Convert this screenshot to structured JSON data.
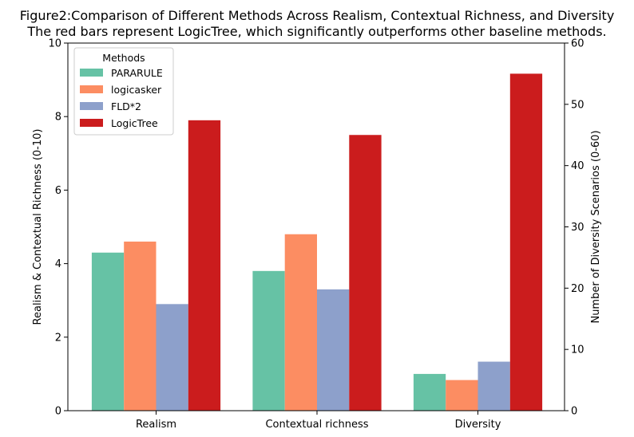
{
  "chart_data": {
    "type": "bar",
    "title": "Figure2:Comparison of Different Methods Across Realism, Contextual Richness, and Diversity",
    "subtitle": "The red bars represent LogicTree, which significantly outperforms other baseline methods.",
    "categories": [
      "Realism",
      "Contextual richness",
      "Diversity"
    ],
    "ylabel_left": "Realism & Contextual Richness (0-10)",
    "ylabel_right": "Number of Diversity Scenarios (0-60)",
    "ylim_left": [
      0,
      10
    ],
    "ylim_right": [
      0,
      60
    ],
    "yticks_left": [
      "0",
      "2",
      "4",
      "6",
      "8",
      "10"
    ],
    "yticks_right": [
      "0",
      "10",
      "20",
      "30",
      "40",
      "50",
      "60"
    ],
    "legend_title": "Methods",
    "legend_position": "top-left",
    "grid": false,
    "series": [
      {
        "name": "PARARULE",
        "color": "#66c2a5",
        "values": [
          4.3,
          3.8,
          6
        ]
      },
      {
        "name": "logicasker",
        "color": "#fc8d62",
        "values": [
          4.6,
          4.8,
          5
        ]
      },
      {
        "name": "FLD*2",
        "color": "#8da0cb",
        "values": [
          2.9,
          3.3,
          8
        ]
      },
      {
        "name": "LogicTree",
        "color": "#cb1c1d",
        "values": [
          7.9,
          7.5,
          55
        ]
      }
    ],
    "axis_for_category": [
      "left",
      "left",
      "right"
    ]
  }
}
